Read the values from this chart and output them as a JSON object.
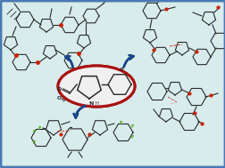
{
  "bg_outer": "#b8d0d8",
  "bg_inner": "#d8ecec",
  "border_color": "#4a7ab5",
  "ellipse_color": "#aa1111",
  "arrow_color": "#1a4488",
  "struct_color": "#2a2a2a",
  "red_accent": "#cc2200",
  "green_accent": "#44aa00",
  "white_fill": "#f8f8f8",
  "dashed_color": "#cc3333"
}
